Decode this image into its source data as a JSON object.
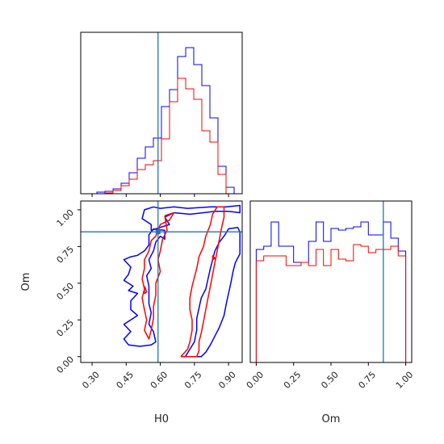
{
  "chart_data": {
    "type": "corner",
    "colors": {
      "blue": "#0000ff",
      "red": "#ff0000",
      "truth": "#1f77b4"
    },
    "params": [
      "H0",
      "Om"
    ],
    "truths": {
      "H0": 0.59,
      "Om": 0.85
    },
    "panels": [
      {
        "id": "h0-hist",
        "type": "step-histogram",
        "xlim": [
          0.25,
          0.96
        ],
        "ylim": [
          0,
          1.0
        ],
        "x_ticks": [
          0.3,
          0.45,
          0.6,
          0.75,
          0.9
        ],
        "x_tick_labels_shown": false,
        "y_tick_labels_shown": false,
        "bin_edges": [
          0.25,
          0.2855,
          0.321,
          0.3565,
          0.392,
          0.4275,
          0.463,
          0.4985,
          0.534,
          0.5695,
          0.605,
          0.6405,
          0.676,
          0.7115,
          0.747,
          0.7825,
          0.818,
          0.8535,
          0.889,
          0.9245,
          0.96
        ],
        "series": [
          {
            "color": "blue",
            "values": [
              0,
              0.0,
              0.01,
              0.015,
              0.03,
              0.065,
              0.13,
              0.22,
              0.29,
              0.345,
              0.54,
              0.645,
              0.85,
              0.905,
              0.8,
              0.67,
              0.47,
              0.17,
              0.04,
              0.0
            ]
          },
          {
            "color": "red",
            "values": [
              0,
              0,
              0,
              0.005,
              0.02,
              0.05,
              0.09,
              0.15,
              0.18,
              0.205,
              0.34,
              0.57,
              0.715,
              0.65,
              0.585,
              0.39,
              0.32,
              0.12,
              0.0,
              0.0
            ]
          }
        ]
      },
      {
        "id": "om-hist",
        "type": "step-histogram",
        "xlim": [
          -0.04,
          1.04
        ],
        "ylim": [
          0,
          1.0
        ],
        "x_ticks": [
          0.0,
          0.25,
          0.5,
          0.75,
          1.0
        ],
        "x_tick_labels": [
          "0.00",
          "0.25",
          "0.50",
          "0.75",
          "1.00"
        ],
        "xlabel": "Om",
        "bin_edges": [
          0.0,
          0.05,
          0.1,
          0.15,
          0.2,
          0.25,
          0.3,
          0.35,
          0.4,
          0.45,
          0.5,
          0.55,
          0.6,
          0.65,
          0.7,
          0.75,
          0.8,
          0.85,
          0.9,
          0.95,
          1.0
        ],
        "series": [
          {
            "color": "blue",
            "values": [
              0.7,
              0.72,
              0.87,
              0.72,
              0.72,
              0.62,
              0.62,
              0.75,
              0.87,
              0.75,
              0.83,
              0.82,
              0.83,
              0.84,
              0.87,
              0.79,
              0.79,
              0.87,
              0.77,
              0.69
            ]
          },
          {
            "color": "red",
            "values": [
              0.63,
              0.66,
              0.66,
              0.66,
              0.6,
              0.6,
              0.62,
              0.6,
              0.7,
              0.6,
              0.7,
              0.64,
              0.63,
              0.73,
              0.72,
              0.68,
              0.7,
              0.7,
              0.72,
              0.66
            ]
          }
        ]
      },
      {
        "id": "h0-om-contour",
        "type": "contour",
        "xlim": [
          0.25,
          0.96
        ],
        "ylim": [
          -0.04,
          1.06
        ],
        "x_ticks": [
          0.3,
          0.45,
          0.6,
          0.75,
          0.9
        ],
        "x_tick_labels": [
          "0.30",
          "0.45",
          "0.60",
          "0.75",
          "0.90"
        ],
        "y_ticks": [
          0.0,
          0.25,
          0.5,
          0.75,
          1.0
        ],
        "y_tick_labels": [
          "0.00",
          "0.25",
          "0.50",
          "0.75",
          "1.00"
        ],
        "xlabel": "H0",
        "ylabel": "Om",
        "contours": [
          {
            "color": "blue",
            "points": [
              [
                0.57,
                1.02
              ],
              [
                0.6,
                1.01
              ],
              [
                0.66,
                1.02
              ],
              [
                0.72,
                1.01
              ],
              [
                0.82,
                1.02
              ],
              [
                0.89,
                1.02
              ],
              [
                0.95,
                1.03
              ],
              [
                0.95,
                0.98
              ],
              [
                0.9,
                0.99
              ],
              [
                0.84,
                0.99
              ],
              [
                0.79,
                0.98
              ],
              [
                0.73,
                0.97
              ],
              [
                0.66,
                0.98
              ],
              [
                0.62,
                0.95
              ],
              [
                0.64,
                0.9
              ],
              [
                0.6,
                0.88
              ],
              [
                0.56,
                0.86
              ],
              [
                0.56,
                0.9
              ],
              [
                0.52,
                0.94
              ],
              [
                0.53,
                1.0
              ],
              [
                0.57,
                1.02
              ]
            ]
          },
          {
            "color": "blue",
            "points": [
              [
                0.57,
                0.87
              ],
              [
                0.55,
                0.83
              ],
              [
                0.55,
                0.76
              ],
              [
                0.53,
                0.72
              ],
              [
                0.5,
                0.69
              ],
              [
                0.47,
                0.68
              ],
              [
                0.44,
                0.66
              ],
              [
                0.47,
                0.61
              ],
              [
                0.46,
                0.56
              ],
              [
                0.44,
                0.52
              ],
              [
                0.48,
                0.48
              ],
              [
                0.46,
                0.45
              ],
              [
                0.5,
                0.43
              ],
              [
                0.47,
                0.38
              ],
              [
                0.47,
                0.32
              ],
              [
                0.5,
                0.28
              ],
              [
                0.47,
                0.25
              ],
              [
                0.44,
                0.22
              ],
              [
                0.47,
                0.17
              ],
              [
                0.44,
                0.12
              ],
              [
                0.46,
                0.08
              ],
              [
                0.51,
                0.07
              ],
              [
                0.56,
                0.08
              ],
              [
                0.58,
                0.1
              ],
              [
                0.57,
                0.17
              ],
              [
                0.55,
                0.22
              ],
              [
                0.56,
                0.3
              ],
              [
                0.55,
                0.36
              ],
              [
                0.55,
                0.42
              ],
              [
                0.55,
                0.48
              ],
              [
                0.54,
                0.55
              ],
              [
                0.56,
                0.6
              ],
              [
                0.55,
                0.66
              ],
              [
                0.57,
                0.72
              ],
              [
                0.58,
                0.78
              ],
              [
                0.6,
                0.82
              ],
              [
                0.62,
                0.8
              ],
              [
                0.62,
                0.86
              ],
              [
                0.57,
                0.87
              ]
            ]
          },
          {
            "color": "blue",
            "points": [
              [
                0.71,
                0.0
              ],
              [
                0.73,
                0.05
              ],
              [
                0.75,
                0.1
              ],
              [
                0.76,
                0.18
              ],
              [
                0.76,
                0.26
              ],
              [
                0.77,
                0.33
              ],
              [
                0.78,
                0.4
              ],
              [
                0.8,
                0.46
              ],
              [
                0.81,
                0.53
              ],
              [
                0.82,
                0.6
              ],
              [
                0.83,
                0.66
              ],
              [
                0.84,
                0.72
              ],
              [
                0.86,
                0.78
              ],
              [
                0.88,
                0.82
              ],
              [
                0.9,
                0.87
              ],
              [
                0.94,
                0.88
              ],
              [
                0.95,
                0.85
              ],
              [
                0.95,
                0.7
              ],
              [
                0.93,
                0.64
              ],
              [
                0.92,
                0.58
              ],
              [
                0.91,
                0.5
              ],
              [
                0.9,
                0.43
              ],
              [
                0.89,
                0.36
              ],
              [
                0.88,
                0.28
              ],
              [
                0.86,
                0.2
              ],
              [
                0.84,
                0.14
              ],
              [
                0.82,
                0.08
              ],
              [
                0.8,
                0.03
              ],
              [
                0.78,
                0.0
              ],
              [
                0.71,
                0.0
              ]
            ]
          },
          {
            "color": "red",
            "points": [
              [
                0.62,
                0.96
              ],
              [
                0.66,
                0.98
              ],
              [
                0.64,
                0.93
              ],
              [
                0.6,
                0.9
              ],
              [
                0.59,
                0.86
              ],
              [
                0.58,
                0.82
              ],
              [
                0.56,
                0.79
              ],
              [
                0.55,
                0.72
              ],
              [
                0.53,
                0.66
              ],
              [
                0.53,
                0.6
              ],
              [
                0.52,
                0.53
              ],
              [
                0.53,
                0.46
              ],
              [
                0.52,
                0.4
              ],
              [
                0.53,
                0.32
              ],
              [
                0.54,
                0.25
              ],
              [
                0.53,
                0.18
              ],
              [
                0.55,
                0.12
              ],
              [
                0.56,
                0.18
              ],
              [
                0.57,
                0.26
              ],
              [
                0.57,
                0.34
              ],
              [
                0.58,
                0.42
              ],
              [
                0.58,
                0.5
              ],
              [
                0.6,
                0.58
              ],
              [
                0.59,
                0.66
              ],
              [
                0.6,
                0.72
              ],
              [
                0.61,
                0.8
              ],
              [
                0.63,
                0.86
              ],
              [
                0.62,
                0.96
              ]
            ]
          },
          {
            "color": "red",
            "points": [
              [
                0.69,
                0.0
              ],
              [
                0.72,
                0.05
              ],
              [
                0.73,
                0.1
              ],
              [
                0.74,
                0.18
              ],
              [
                0.74,
                0.25
              ],
              [
                0.73,
                0.32
              ],
              [
                0.73,
                0.4
              ],
              [
                0.74,
                0.48
              ],
              [
                0.75,
                0.54
              ],
              [
                0.76,
                0.6
              ],
              [
                0.77,
                0.68
              ],
              [
                0.79,
                0.75
              ],
              [
                0.8,
                0.82
              ],
              [
                0.82,
                0.9
              ],
              [
                0.83,
                0.97
              ],
              [
                0.85,
                1.02
              ],
              [
                0.88,
                1.02
              ],
              [
                0.88,
                0.95
              ],
              [
                0.87,
                0.88
              ],
              [
                0.86,
                0.8
              ],
              [
                0.85,
                0.72
              ],
              [
                0.84,
                0.64
              ],
              [
                0.83,
                0.56
              ],
              [
                0.82,
                0.48
              ],
              [
                0.81,
                0.4
              ],
              [
                0.8,
                0.32
              ],
              [
                0.79,
                0.24
              ],
              [
                0.78,
                0.16
              ],
              [
                0.77,
                0.1
              ],
              [
                0.77,
                0.04
              ],
              [
                0.76,
                0.0
              ],
              [
                0.69,
                0.0
              ]
            ]
          },
          {
            "color": "red",
            "points": [
              [
                0.53,
                0.48
              ],
              [
                0.54,
                0.44
              ],
              [
                0.53,
                0.43
              ],
              [
                0.53,
                0.48
              ]
            ]
          },
          {
            "color": "red",
            "points": [
              [
                0.83,
                0.69
              ],
              [
                0.84,
                0.67
              ],
              [
                0.83,
                0.66
              ],
              [
                0.83,
                0.69
              ]
            ]
          }
        ]
      }
    ]
  }
}
